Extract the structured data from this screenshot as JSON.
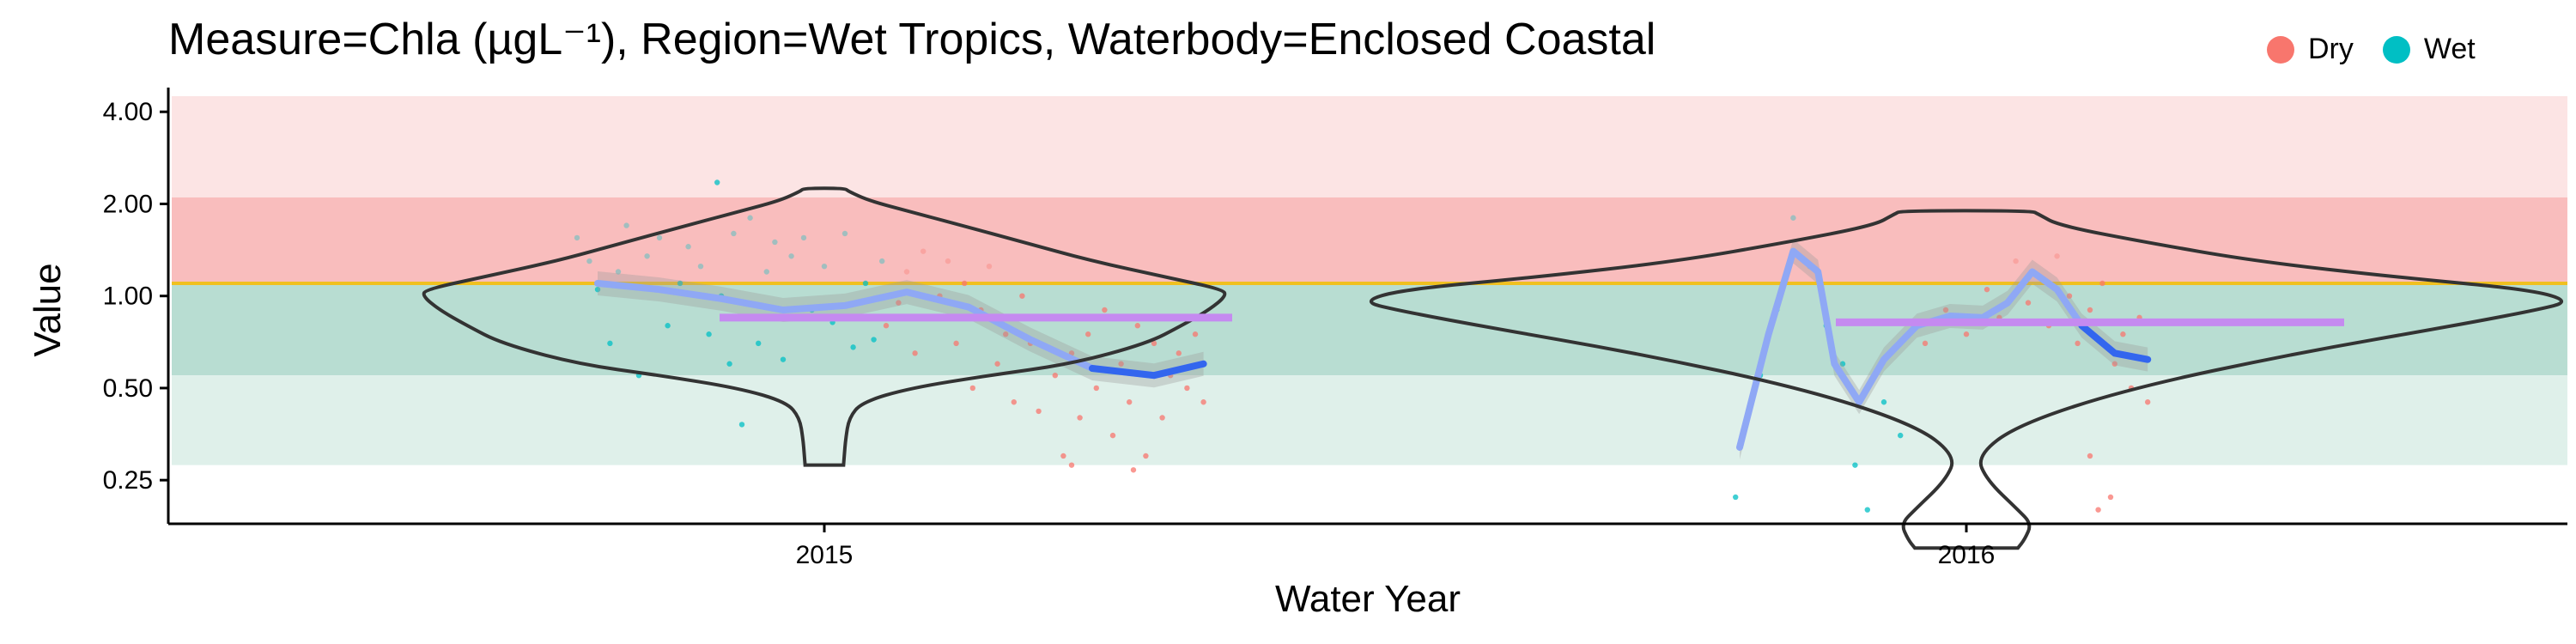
{
  "title": "Measure=Chla (µgL⁻¹), Region=Wet Tropics, Waterbody=Enclosed Coastal",
  "legend": {
    "items": [
      {
        "label": "Dry",
        "color": "#F8766D"
      },
      {
        "label": "Wet",
        "color": "#00BFC4"
      }
    ]
  },
  "chart_data": {
    "type": "violin",
    "xlabel": "Water Year",
    "ylabel": "Value",
    "y_scale": "log2",
    "ylim": [
      0.18,
      4.5
    ],
    "y_ticks": [
      {
        "value": 0.25,
        "label": "0.25"
      },
      {
        "value": 0.5,
        "label": "0.50"
      },
      {
        "value": 1.0,
        "label": "1.00"
      },
      {
        "value": 2.0,
        "label": "2.00"
      },
      {
        "value": 4.0,
        "label": "4.00"
      }
    ],
    "categories": [
      "2015",
      "2016"
    ],
    "guideline": {
      "value": 1.1,
      "color": "#F0C020"
    },
    "bands": [
      {
        "from": 2.1,
        "to": 4.5,
        "color": "#FCE4E4"
      },
      {
        "from": 1.1,
        "to": 2.1,
        "color": "#F9BDBD"
      },
      {
        "from": 0.55,
        "to": 1.1,
        "color": "#B8DDD2"
      },
      {
        "from": 0.28,
        "to": 0.55,
        "color": "#DFF0EA"
      }
    ],
    "violins": [
      {
        "year": "2015",
        "profile": [
          [
            0.28,
            0.28
          ],
          [
            0.3,
            0.29
          ],
          [
            0.34,
            0.31
          ],
          [
            0.4,
            0.36
          ],
          [
            0.45,
            0.55
          ],
          [
            0.5,
            1.25
          ],
          [
            0.55,
            2.4
          ],
          [
            0.6,
            3.6
          ],
          [
            0.7,
            4.7
          ],
          [
            0.8,
            5.2
          ],
          [
            0.9,
            5.6
          ],
          [
            1.0,
            5.85
          ],
          [
            1.05,
            5.8
          ],
          [
            1.15,
            5.0
          ],
          [
            1.3,
            3.9
          ],
          [
            1.5,
            2.9
          ],
          [
            1.7,
            2.0
          ],
          [
            1.9,
            1.2
          ],
          [
            2.05,
            0.65
          ],
          [
            2.2,
            0.35
          ],
          [
            2.25,
            0.3
          ]
        ],
        "median": 0.85
      },
      {
        "year": "2016",
        "profile": [
          [
            0.15,
            0.75
          ],
          [
            0.16,
            0.85
          ],
          [
            0.18,
            0.95
          ],
          [
            0.2,
            0.75
          ],
          [
            0.25,
            0.3
          ],
          [
            0.3,
            0.15
          ],
          [
            0.38,
            0.75
          ],
          [
            0.5,
            2.4
          ],
          [
            0.65,
            4.8
          ],
          [
            0.8,
            7.1
          ],
          [
            0.9,
            8.3
          ],
          [
            0.96,
            8.8
          ],
          [
            1.05,
            8.2
          ],
          [
            1.15,
            6.3
          ],
          [
            1.3,
            4.2
          ],
          [
            1.5,
            2.6
          ],
          [
            1.7,
            1.35
          ],
          [
            1.85,
            1.05
          ],
          [
            1.9,
            0.95
          ]
        ],
        "median": 0.82
      }
    ],
    "smooth": [
      {
        "year": "2015",
        "points": [
          [
            -0.55,
            1.1
          ],
          [
            -0.4,
            1.05
          ],
          [
            -0.25,
            0.98
          ],
          [
            -0.1,
            0.9
          ],
          [
            0.05,
            0.93
          ],
          [
            0.2,
            1.03
          ],
          [
            0.35,
            0.92
          ],
          [
            0.5,
            0.72
          ],
          [
            0.65,
            0.58
          ],
          [
            0.8,
            0.55
          ],
          [
            0.92,
            0.6
          ]
        ]
      },
      {
        "year": "2016",
        "points": [
          [
            -0.55,
            0.32
          ],
          [
            -0.48,
            0.75
          ],
          [
            -0.42,
            1.4
          ],
          [
            -0.36,
            1.2
          ],
          [
            -0.32,
            0.6
          ],
          [
            -0.26,
            0.45
          ],
          [
            -0.2,
            0.62
          ],
          [
            -0.12,
            0.8
          ],
          [
            -0.04,
            0.86
          ],
          [
            0.04,
            0.85
          ],
          [
            0.1,
            0.95
          ],
          [
            0.16,
            1.2
          ],
          [
            0.22,
            1.05
          ],
          [
            0.28,
            0.8
          ],
          [
            0.36,
            0.65
          ],
          [
            0.44,
            0.62
          ]
        ]
      }
    ],
    "points": {
      "2015": {
        "Wet": [
          [
            -0.6,
            1.55
          ],
          [
            -0.57,
            1.3
          ],
          [
            -0.55,
            1.05
          ],
          [
            -0.52,
            0.7
          ],
          [
            -0.5,
            1.2
          ],
          [
            -0.48,
            1.7
          ],
          [
            -0.45,
            0.55
          ],
          [
            -0.43,
            1.35
          ],
          [
            -0.4,
            1.55
          ],
          [
            -0.38,
            0.8
          ],
          [
            -0.35,
            1.1
          ],
          [
            -0.33,
            1.45
          ],
          [
            -0.3,
            1.25
          ],
          [
            -0.28,
            0.75
          ],
          [
            -0.26,
            2.35
          ],
          [
            -0.25,
            1.0
          ],
          [
            -0.23,
            0.6
          ],
          [
            -0.22,
            1.6
          ],
          [
            -0.2,
            0.38
          ],
          [
            -0.18,
            1.8
          ],
          [
            -0.16,
            0.7
          ],
          [
            -0.14,
            1.2
          ],
          [
            -0.12,
            1.5
          ],
          [
            -0.1,
            0.62
          ],
          [
            -0.08,
            1.35
          ],
          [
            -0.05,
            1.55
          ],
          [
            -0.03,
            0.9
          ],
          [
            0.0,
            1.25
          ],
          [
            0.02,
            0.82
          ],
          [
            0.05,
            1.6
          ],
          [
            0.07,
            0.68
          ],
          [
            0.1,
            1.1
          ],
          [
            0.12,
            0.72
          ],
          [
            0.14,
            1.3
          ]
        ],
        "Dry": [
          [
            0.15,
            0.8
          ],
          [
            0.18,
            0.95
          ],
          [
            0.2,
            1.2
          ],
          [
            0.22,
            0.65
          ],
          [
            0.24,
            1.4
          ],
          [
            0.26,
            0.85
          ],
          [
            0.28,
            1.0
          ],
          [
            0.3,
            1.3
          ],
          [
            0.32,
            0.7
          ],
          [
            0.34,
            1.1
          ],
          [
            0.36,
            0.5
          ],
          [
            0.38,
            0.9
          ],
          [
            0.4,
            1.25
          ],
          [
            0.42,
            0.6
          ],
          [
            0.44,
            0.75
          ],
          [
            0.46,
            0.45
          ],
          [
            0.48,
            1.0
          ],
          [
            0.5,
            0.7
          ],
          [
            0.52,
            0.42
          ],
          [
            0.54,
            0.85
          ],
          [
            0.56,
            0.55
          ],
          [
            0.58,
            0.3
          ],
          [
            0.6,
            0.65
          ],
          [
            0.62,
            0.4
          ],
          [
            0.64,
            0.75
          ],
          [
            0.66,
            0.5
          ],
          [
            0.68,
            0.9
          ],
          [
            0.7,
            0.35
          ],
          [
            0.72,
            0.6
          ],
          [
            0.74,
            0.45
          ],
          [
            0.76,
            0.8
          ],
          [
            0.78,
            0.3
          ],
          [
            0.8,
            0.7
          ],
          [
            0.82,
            0.4
          ],
          [
            0.84,
            0.55
          ],
          [
            0.86,
            0.65
          ],
          [
            0.88,
            0.5
          ],
          [
            0.9,
            0.75
          ],
          [
            0.92,
            0.45
          ],
          [
            0.93,
            0.85
          ],
          [
            0.6,
            0.28
          ],
          [
            0.75,
            0.27
          ]
        ]
      },
      "2016": {
        "Wet": [
          [
            -0.56,
            0.22
          ],
          [
            -0.5,
            0.55
          ],
          [
            -0.46,
            0.9
          ],
          [
            -0.42,
            1.8
          ],
          [
            -0.38,
            1.25
          ],
          [
            -0.34,
            0.8
          ],
          [
            -0.3,
            0.6
          ],
          [
            -0.27,
            0.28
          ],
          [
            -0.24,
            0.2
          ],
          [
            -0.2,
            0.45
          ],
          [
            -0.16,
            0.35
          ]
        ],
        "Dry": [
          [
            -0.1,
            0.7
          ],
          [
            -0.05,
            0.9
          ],
          [
            0.0,
            0.75
          ],
          [
            0.05,
            1.05
          ],
          [
            0.08,
            0.85
          ],
          [
            0.12,
            1.3
          ],
          [
            0.15,
            0.95
          ],
          [
            0.18,
            1.15
          ],
          [
            0.2,
            0.8
          ],
          [
            0.22,
            1.35
          ],
          [
            0.25,
            1.0
          ],
          [
            0.27,
            0.7
          ],
          [
            0.3,
            0.9
          ],
          [
            0.33,
            1.1
          ],
          [
            0.36,
            0.6
          ],
          [
            0.38,
            0.75
          ],
          [
            0.4,
            0.5
          ],
          [
            0.42,
            0.85
          ],
          [
            0.44,
            0.45
          ],
          [
            0.3,
            0.3
          ],
          [
            0.32,
            0.2
          ],
          [
            0.35,
            0.22
          ]
        ]
      }
    }
  }
}
